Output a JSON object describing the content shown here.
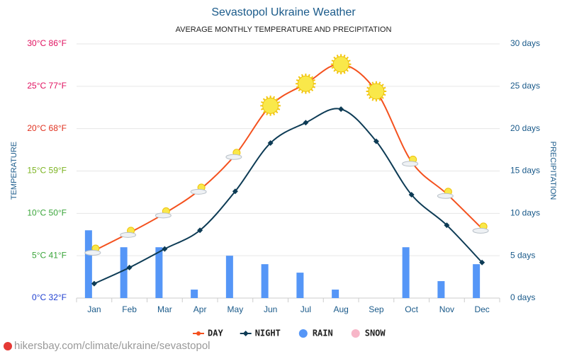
{
  "chart_data": {
    "type": "line",
    "title": "Sevastopol Ukraine Weather",
    "subtitle": "AVERAGE MONTHLY TEMPERATURE AND PRECIPITATION",
    "ylabel": "TEMPERATURE",
    "y2label": "PRECIPITATION",
    "source": "hikersbay.com/climate/ukraine/sevastopol",
    "categories": [
      "Jan",
      "Feb",
      "Mar",
      "Apr",
      "May",
      "Jun",
      "Jul",
      "Aug",
      "Sep",
      "Oct",
      "Nov",
      "Dec"
    ],
    "series": [
      {
        "name": "DAY",
        "type": "line",
        "color": "#f4511e",
        "marker": "weather",
        "icons": [
          "partly-cloudy",
          "partly-cloudy",
          "partly-cloudy",
          "partly-cloudy",
          "partly-cloudy",
          "sun",
          "sun",
          "sun",
          "sun",
          "partly-cloudy",
          "partly-cloudy",
          "partly-cloudy"
        ],
        "values": [
          5.6,
          7.7,
          10,
          12.8,
          16.9,
          22.7,
          25.3,
          27.6,
          24.4,
          16.1,
          12.3,
          8.2
        ]
      },
      {
        "name": "NIGHT",
        "type": "line",
        "color": "#0d3b55",
        "marker": "diamond",
        "values": [
          1.7,
          3.6,
          5.8,
          8,
          12.6,
          18.3,
          20.7,
          22.3,
          18.5,
          12.2,
          8.6,
          4.2
        ]
      },
      {
        "name": "RAIN",
        "type": "bar",
        "axis": "y2",
        "color": "#5596f7",
        "values": [
          8,
          6,
          6,
          1,
          5,
          4,
          3,
          1,
          0,
          6,
          2,
          4
        ]
      },
      {
        "name": "SNOW",
        "type": "bar",
        "axis": "y2",
        "color": "#f7b6c8",
        "values": [
          0,
          0,
          0,
          0,
          0,
          0,
          0,
          0,
          0,
          0,
          0,
          0
        ]
      }
    ],
    "ylim": [
      0,
      30
    ],
    "yticks": [
      {
        "value": 0,
        "label": "0°C 32°F",
        "color": "#1f3fd0"
      },
      {
        "value": 5,
        "label": "5°C 41°F",
        "color": "#3aa53a"
      },
      {
        "value": 10,
        "label": "10°C 50°F",
        "color": "#3aa53a"
      },
      {
        "value": 15,
        "label": "15°C 59°F",
        "color": "#7bb320"
      },
      {
        "value": 20,
        "label": "20°C 68°F",
        "color": "#e0301e"
      },
      {
        "value": 25,
        "label": "25°C 77°F",
        "color": "#e0115f"
      },
      {
        "value": 30,
        "label": "30°C 86°F",
        "color": "#e0115f"
      }
    ],
    "y2lim": [
      0,
      30
    ],
    "y2ticks": [
      {
        "value": 0,
        "label": "0 days"
      },
      {
        "value": 5,
        "label": "5 days"
      },
      {
        "value": 10,
        "label": "10 days"
      },
      {
        "value": 15,
        "label": "15 days"
      },
      {
        "value": 20,
        "label": "20 days"
      },
      {
        "value": 25,
        "label": "25 days"
      },
      {
        "value": 30,
        "label": "30 days"
      }
    ],
    "y2color": "#1a5a8a",
    "grid": true
  }
}
